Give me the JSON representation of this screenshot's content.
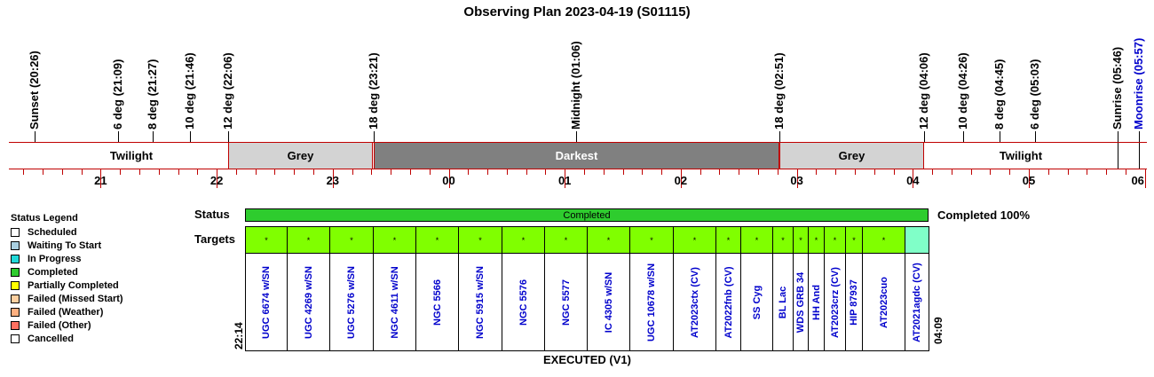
{
  "title": "Observing Plan 2023-04-19 (S01115)",
  "events": [
    {
      "label": "Sunset (20:26)",
      "time": "20:26",
      "color": "#000000"
    },
    {
      "label": "6 deg (21:09)",
      "time": "21:09",
      "color": "#000000"
    },
    {
      "label": "8 deg (21:27)",
      "time": "21:27",
      "color": "#000000"
    },
    {
      "label": "10 deg (21:46)",
      "time": "21:46",
      "color": "#000000"
    },
    {
      "label": "12 deg (22:06)",
      "time": "22:06",
      "color": "#000000"
    },
    {
      "label": "18 deg (23:21)",
      "time": "23:21",
      "color": "#000000"
    },
    {
      "label": "Midnight (01:06)",
      "time": "01:06",
      "color": "#000000"
    },
    {
      "label": "18 deg (02:51)",
      "time": "02:51",
      "color": "#000000"
    },
    {
      "label": "12 deg (04:06)",
      "time": "04:06",
      "color": "#000000"
    },
    {
      "label": "10 deg (04:26)",
      "time": "04:26",
      "color": "#000000"
    },
    {
      "label": "8 deg (04:45)",
      "time": "04:45",
      "color": "#000000"
    },
    {
      "label": "6 deg (05:03)",
      "time": "05:03",
      "color": "#000000"
    },
    {
      "label": "Sunrise (05:46)",
      "time": "05:46",
      "color": "#000000"
    },
    {
      "label": "Moonrise (05:57)",
      "time": "05:57",
      "color": "#0000cc"
    }
  ],
  "bands": [
    {
      "label": "Twilight",
      "from": "20:26",
      "to": "22:06",
      "color": "#ffffff",
      "text_color": "#000000"
    },
    {
      "label": "Grey",
      "from": "22:06",
      "to": "23:21",
      "color": "#d3d3d3",
      "text_color": "#000000"
    },
    {
      "label": "Darkest",
      "from": "23:21",
      "to": "02:51",
      "color": "#808080",
      "text_color": "#ffffff"
    },
    {
      "label": "Grey",
      "from": "02:51",
      "to": "04:06",
      "color": "#d3d3d3",
      "text_color": "#000000"
    },
    {
      "label": "Twilight",
      "from": "04:06",
      "to": "05:46",
      "color": "#ffffff",
      "text_color": "#000000"
    }
  ],
  "hours": [
    "21",
    "22",
    "23",
    "00",
    "01",
    "02",
    "03",
    "04",
    "05",
    "06"
  ],
  "legend": {
    "title": "Status Legend",
    "items": [
      {
        "label": "Scheduled",
        "color": "#ffffff"
      },
      {
        "label": "Waiting To Start",
        "color": "#a9cfe0"
      },
      {
        "label": "In Progress",
        "color": "#22d8d8"
      },
      {
        "label": "Completed",
        "color": "#2ecc2e"
      },
      {
        "label": "Partially Completed",
        "color": "#ffff00"
      },
      {
        "label": "Failed (Missed Start)",
        "color": "#ffd0a0"
      },
      {
        "label": "Failed (Weather)",
        "color": "#ffb080"
      },
      {
        "label": "Failed (Other)",
        "color": "#ff7060"
      },
      {
        "label": "Cancelled",
        "color": "#ffffff"
      }
    ]
  },
  "status_label": "Status",
  "targets_label": "Targets",
  "status_bar_text": "Completed",
  "status_summary": "Completed 100%",
  "start_time": "22:14",
  "end_time": "04:09",
  "executed_label": "EXECUTED (V1)",
  "targets": [
    {
      "name": "UGC 6674 w/SN",
      "mark": "*",
      "color": "#80ff00",
      "weight": 47
    },
    {
      "name": "UGC 4269 w/SN",
      "mark": "*",
      "color": "#80ff00",
      "weight": 48
    },
    {
      "name": "UGC 5276 w/SN",
      "mark": "*",
      "color": "#80ff00",
      "weight": 48
    },
    {
      "name": "NGC 4611 w/SN",
      "mark": "*",
      "color": "#80ff00",
      "weight": 48
    },
    {
      "name": "NGC 5566",
      "mark": "*",
      "color": "#80ff00",
      "weight": 48
    },
    {
      "name": "NGC 5915 w/SN",
      "mark": "*",
      "color": "#80ff00",
      "weight": 48
    },
    {
      "name": "NGC 5576",
      "mark": "*",
      "color": "#80ff00",
      "weight": 48
    },
    {
      "name": "NGC 5577",
      "mark": "*",
      "color": "#80ff00",
      "weight": 48
    },
    {
      "name": "IC 4305 w/SN",
      "mark": "*",
      "color": "#80ff00",
      "weight": 48
    },
    {
      "name": "UGC 10678 w/SN",
      "mark": "*",
      "color": "#80ff00",
      "weight": 48
    },
    {
      "name": "AT2023ctx (CV)",
      "mark": "*",
      "color": "#80ff00",
      "weight": 48
    },
    {
      "name": "AT2022fnb (CV)",
      "mark": "*",
      "color": "#80ff00",
      "weight": 28
    },
    {
      "name": "SS Cyg",
      "mark": "*",
      "color": "#80ff00",
      "weight": 36
    },
    {
      "name": "BL Lac",
      "mark": "*",
      "color": "#80ff00",
      "weight": 23
    },
    {
      "name": "WDS GRB 34",
      "mark": "*",
      "color": "#80ff00",
      "weight": 17
    },
    {
      "name": "HH And",
      "mark": "*",
      "color": "#80ff00",
      "weight": 18
    },
    {
      "name": "AT2023crz (CV)",
      "mark": "*",
      "color": "#80ff00",
      "weight": 23
    },
    {
      "name": "HIP 87937",
      "mark": "*",
      "color": "#80ff00",
      "weight": 19
    },
    {
      "name": "AT2023cuo",
      "mark": "*",
      "color": "#80ff00",
      "weight": 48
    },
    {
      "name": "AT2021agdc (CV)",
      "mark": "",
      "color": "#80ffc8",
      "weight": 26
    }
  ]
}
